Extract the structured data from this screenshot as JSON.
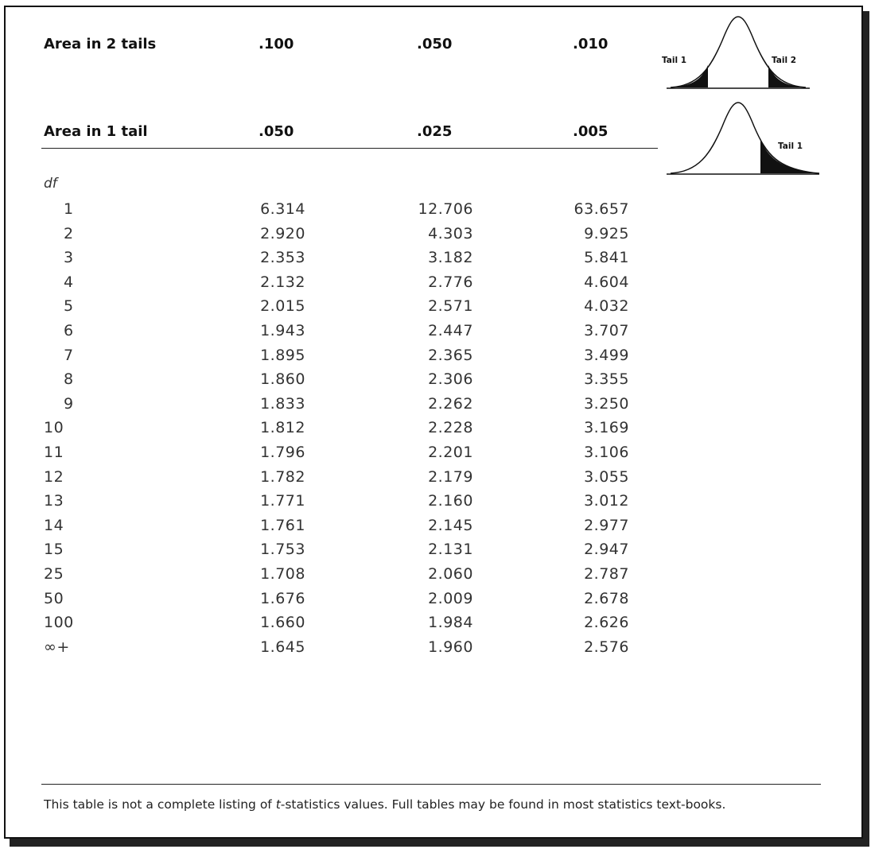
{
  "headers": {
    "two_tails_label": "Area in 2 tails",
    "two_tails_values": [
      ".100",
      ".050",
      ".010"
    ],
    "one_tail_label": "Area in 1 tail",
    "one_tail_values": [
      ".050",
      ".025",
      ".005"
    ],
    "df_label": "df"
  },
  "curves": {
    "two_tail": {
      "left_label": "Tail 1",
      "right_label": "Tail 2"
    },
    "one_tail": {
      "right_label": "Tail 1"
    }
  },
  "rows": [
    {
      "df": "1",
      "v": [
        "6.314",
        "12.706",
        "63.657"
      ]
    },
    {
      "df": "2",
      "v": [
        "2.920",
        "4.303",
        "9.925"
      ]
    },
    {
      "df": "3",
      "v": [
        "2.353",
        "3.182",
        "5.841"
      ]
    },
    {
      "df": "4",
      "v": [
        "2.132",
        "2.776",
        "4.604"
      ]
    },
    {
      "df": "5",
      "v": [
        "2.015",
        "2.571",
        "4.032"
      ]
    },
    {
      "df": "6",
      "v": [
        "1.943",
        "2.447",
        "3.707"
      ]
    },
    {
      "df": "7",
      "v": [
        "1.895",
        "2.365",
        "3.499"
      ]
    },
    {
      "df": "8",
      "v": [
        "1.860",
        "2.306",
        "3.355"
      ]
    },
    {
      "df": "9",
      "v": [
        "1.833",
        "2.262",
        "3.250"
      ]
    },
    {
      "df": "10",
      "v": [
        "1.812",
        "2.228",
        "3.169"
      ]
    },
    {
      "df": "11",
      "v": [
        "1.796",
        "2.201",
        "3.106"
      ]
    },
    {
      "df": "12",
      "v": [
        "1.782",
        "2.179",
        "3.055"
      ]
    },
    {
      "df": "13",
      "v": [
        "1.771",
        "2.160",
        "3.012"
      ]
    },
    {
      "df": "14",
      "v": [
        "1.761",
        "2.145",
        "2.977"
      ]
    },
    {
      "df": "15",
      "v": [
        "1.753",
        "2.131",
        "2.947"
      ]
    },
    {
      "df": "25",
      "v": [
        "1.708",
        "2.060",
        "2.787"
      ]
    },
    {
      "df": "50",
      "v": [
        "1.676",
        "2.009",
        "2.678"
      ]
    },
    {
      "df": "100",
      "v": [
        "1.660",
        "1.984",
        "2.626"
      ]
    },
    {
      "df": "∞+",
      "v": [
        "1.645",
        "1.960",
        "2.576"
      ]
    }
  ],
  "note": {
    "before": "This table is not a complete listing of ",
    "italic": "t",
    "after": "-statistics values. Full tables may be found in most statistics text-books."
  }
}
